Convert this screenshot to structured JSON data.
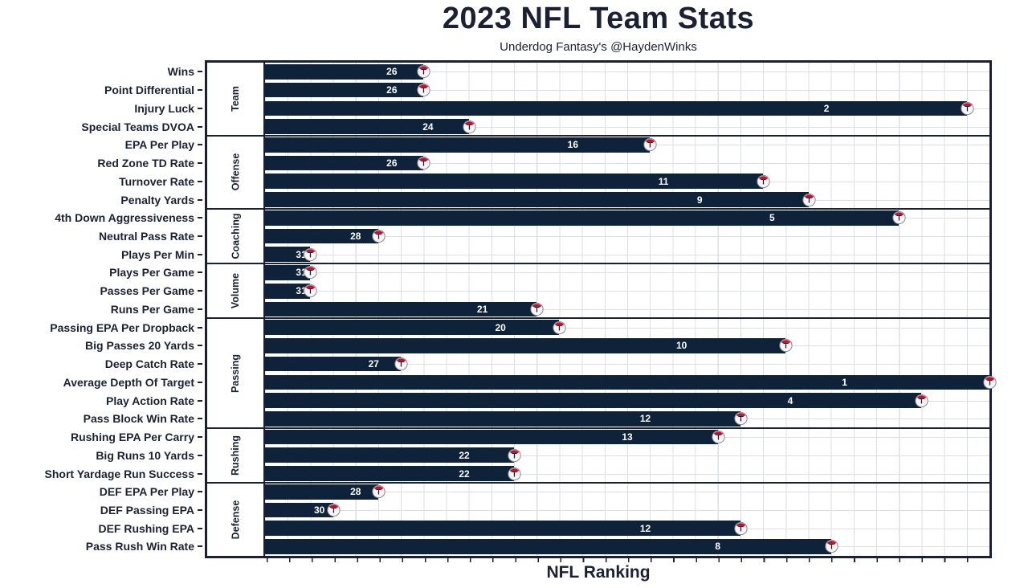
{
  "title": "2023 NFL Team Stats",
  "subtitle": "Underdog Fantasy's @HaydenWinks",
  "colors": {
    "bar": "#0e2239",
    "axis_and_text": "#1b2133",
    "grid": "#dcdfe4",
    "value_label": "#ffffff",
    "logo_red": "#c8102e",
    "logo_silver": "#8a8d8f"
  },
  "icons": {
    "bar_end_icon": "tennessee-titans-logo"
  },
  "chart_data": {
    "type": "bar",
    "orientation": "horizontal",
    "title": "2023 NFL Team Stats",
    "subtitle": "Underdog Fantasy's @HaydenWinks",
    "xlabel": "NFL Ranking",
    "x_axis": {
      "min": 0,
      "max": 32,
      "tick_interval": 1,
      "tick_labels_visible": false
    },
    "value_meaning": "NFL ranking out of 32 teams (1 = best); bar length = 33 - rank",
    "legend": "none",
    "grid": true,
    "groups": [
      {
        "label": "Team",
        "metrics": [
          {
            "label": "Wins",
            "rank": 26
          },
          {
            "label": "Point Differential",
            "rank": 26
          },
          {
            "label": "Injury Luck",
            "rank": 2
          },
          {
            "label": "Special Teams DVOA",
            "rank": 24
          }
        ]
      },
      {
        "label": "Offense",
        "metrics": [
          {
            "label": "EPA Per Play",
            "rank": 16
          },
          {
            "label": "Red Zone TD Rate",
            "rank": 26
          },
          {
            "label": "Turnover Rate",
            "rank": 11
          },
          {
            "label": "Penalty Yards",
            "rank": 9
          }
        ]
      },
      {
        "label": "Coaching",
        "metrics": [
          {
            "label": "4th Down Aggressiveness",
            "rank": 5
          },
          {
            "label": "Neutral Pass Rate",
            "rank": 28
          },
          {
            "label": "Plays Per Min",
            "rank": 31
          }
        ]
      },
      {
        "label": "Volume",
        "metrics": [
          {
            "label": "Plays Per Game",
            "rank": 31
          },
          {
            "label": "Passes Per Game",
            "rank": 31
          },
          {
            "label": "Runs Per Game",
            "rank": 21
          }
        ]
      },
      {
        "label": "Passing",
        "metrics": [
          {
            "label": "Passing EPA Per Dropback",
            "rank": 20
          },
          {
            "label": "Big Passes 20 Yards",
            "rank": 10
          },
          {
            "label": "Deep Catch Rate",
            "rank": 27
          },
          {
            "label": "Average Depth Of Target",
            "rank": 1
          },
          {
            "label": "Play Action Rate",
            "rank": 4
          },
          {
            "label": "Pass Block Win Rate",
            "rank": 12
          }
        ]
      },
      {
        "label": "Rushing",
        "metrics": [
          {
            "label": "Rushing EPA Per Carry",
            "rank": 13
          },
          {
            "label": "Big Runs 10 Yards",
            "rank": 22
          },
          {
            "label": "Short Yardage Run Success",
            "rank": 22
          }
        ]
      },
      {
        "label": "Defense",
        "metrics": [
          {
            "label": "DEF EPA Per Play",
            "rank": 28
          },
          {
            "label": "DEF Passing EPA",
            "rank": 30
          },
          {
            "label": "DEF Rushing EPA",
            "rank": 12
          },
          {
            "label": "Pass Rush Win Rate",
            "rank": 8
          }
        ]
      }
    ]
  }
}
